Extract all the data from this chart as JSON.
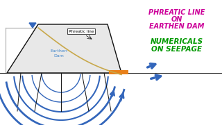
{
  "bg_color": "#ffffff",
  "title1": "PHREATIC LINE",
  "title2": "ON",
  "title3": "EARTHEN DAM",
  "title4": "NUMERICALS",
  "title5": "ON SEEPAGE",
  "title_color": "#cc0099",
  "numericals_color": "#009900",
  "phreatic_color": "#c8a84b",
  "seepage_blue": "#3366bb",
  "seepage_dark": "#1a4488",
  "filter_color": "#e8801a",
  "label_color": "#4488cc",
  "water_gray": "#aaaaaa",
  "water_tri": "#3366bb",
  "black": "#111111"
}
